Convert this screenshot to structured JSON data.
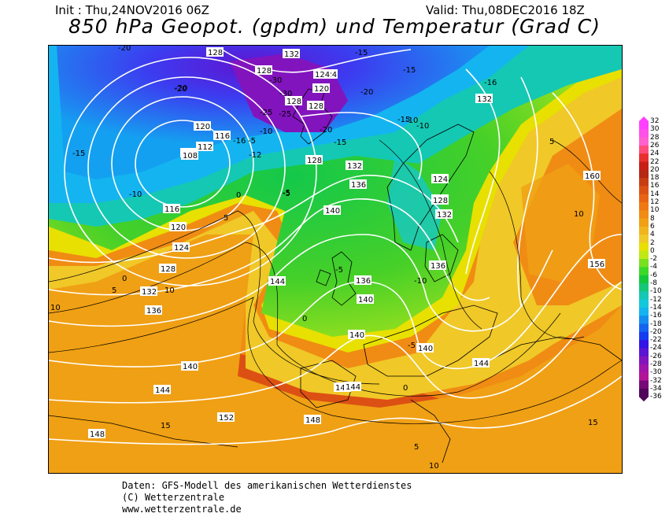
{
  "header": {
    "init": "Init : Thu,24NOV2016 06Z",
    "valid": "Valid: Thu,08DEC2016 18Z",
    "title": "850 hPa Geopot. (gpdm) und Temperatur (Grad C)"
  },
  "map": {
    "geopotential_labels_gpdm": [
      "128",
      "132",
      "128",
      "120",
      "124",
      "128",
      "128",
      "120",
      "116",
      "112",
      "120",
      "108",
      "116",
      "120",
      "124",
      "128",
      "132",
      "136",
      "140",
      "144",
      "148",
      "152",
      "124",
      "128",
      "132",
      "136",
      "140",
      "144",
      "136",
      "140",
      "140",
      "144",
      "148",
      "132",
      "160",
      "156",
      "140",
      "144",
      "128",
      "124",
      "128",
      "132",
      "136",
      "144"
    ],
    "temperature_labels_c": [
      "-20",
      "-20",
      "-15",
      "-15",
      "-20",
      "-15",
      "-10",
      "-30",
      "-30",
      "-25",
      "-20",
      "-16",
      "-15",
      "-10",
      "-5",
      "-5",
      "0",
      "5",
      "0",
      "-15",
      "-10",
      "-5",
      "5",
      "10",
      "10",
      "0",
      "-5",
      "-10",
      "-5",
      "0",
      "5",
      "10",
      "15",
      "15",
      "5",
      "10",
      "-20",
      "-25",
      "-10",
      "-12",
      "-16"
    ]
  },
  "legend": {
    "labels": [
      "32",
      "30",
      "28",
      "26",
      "24",
      "22",
      "20",
      "18",
      "16",
      "14",
      "12",
      "10",
      "8",
      "6",
      "4",
      "2",
      "0",
      "-2",
      "-4",
      "-6",
      "-8",
      "-10",
      "-12",
      "-14",
      "-16",
      "-18",
      "-20",
      "-22",
      "-24",
      "-26",
      "-28",
      "-30",
      "-32",
      "-34",
      "-36"
    ],
    "colors": [
      "#ff40ff",
      "#ff50e8",
      "#ff60d0",
      "#ff4c7c",
      "#e83030",
      "#c81e14",
      "#b42814",
      "#c83c14",
      "#dc5014",
      "#e86414",
      "#f07814",
      "#f08c14",
      "#f0a014",
      "#f0b41e",
      "#f0c828",
      "#e8e000",
      "#c0e814",
      "#78e01e",
      "#3cd828",
      "#14c83c",
      "#14c878",
      "#14c8b4",
      "#14c8dc",
      "#14b4f0",
      "#148cf0",
      "#1464f0",
      "#143cf0",
      "#3214e6",
      "#5a14d2",
      "#8214be",
      "#a014aa",
      "#b41496",
      "#780a78",
      "#50055a"
    ]
  },
  "footer": {
    "line1": "Daten: GFS-Modell des amerikanischen Wetterdienstes",
    "line2": "(C) Wetterzentrale",
    "line3": "www.wetterzentrale.de"
  }
}
